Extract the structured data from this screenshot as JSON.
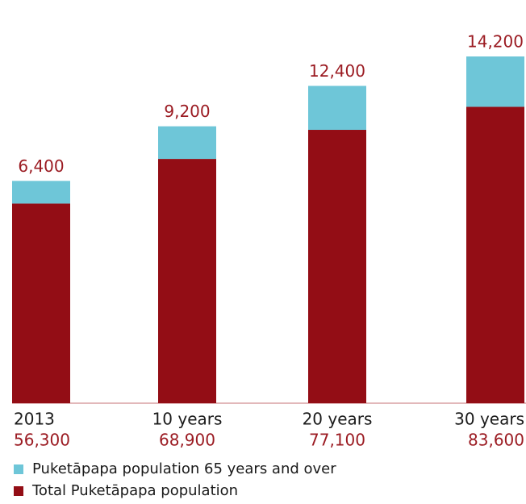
{
  "chart_data": {
    "type": "stacked-bar",
    "categories": [
      "2013",
      "10 years",
      "20 years",
      "30 years"
    ],
    "series": [
      {
        "name": "Total Puketāpapa population",
        "color": "#930d15",
        "values": [
          56300,
          68900,
          77100,
          83600
        ],
        "value_labels": [
          "56,300",
          "68,900",
          "77,100",
          "83,600"
        ]
      },
      {
        "name": "Puketāpapa population 65 years and over",
        "color": "#6ec6d8",
        "values": [
          6400,
          9200,
          12400,
          14200
        ],
        "value_labels": [
          "6,400",
          "9,200",
          "12,400",
          "14,200"
        ]
      }
    ]
  }
}
